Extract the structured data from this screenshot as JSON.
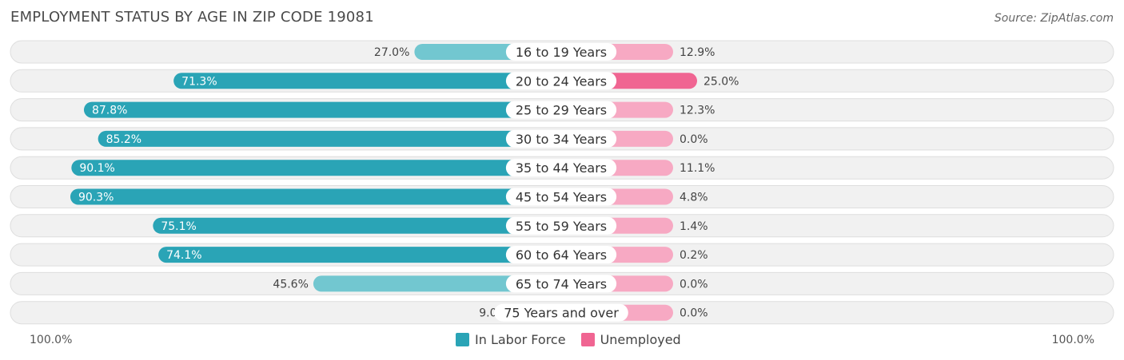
{
  "colors": {
    "labor_strong": "#2aa4b6",
    "labor_light": "#72c7d0",
    "unemployed_strong": "#f06592",
    "unemployed_light": "#f7a9c3",
    "row_background": "#f1f1f1",
    "row_border": "#dedede"
  },
  "chart_data": {
    "type": "bar",
    "orientation": "diverging-horizontal",
    "title": "EMPLOYMENT STATUS BY AGE IN ZIP CODE 19081",
    "source": "Source: ZipAtlas.com",
    "categories": [
      "16 to 19 Years",
      "20 to 24 Years",
      "25 to 29 Years",
      "30 to 34 Years",
      "35 to 44 Years",
      "45 to 54 Years",
      "55 to 59 Years",
      "60 to 64 Years",
      "65 to 74 Years",
      "75 Years and over"
    ],
    "series": [
      {
        "name": "In Labor Force",
        "side": "left",
        "values": [
          27.0,
          71.3,
          87.8,
          85.2,
          90.1,
          90.3,
          75.1,
          74.1,
          45.6,
          9.0
        ],
        "labels": [
          "27.0%",
          "71.3%",
          "87.8%",
          "85.2%",
          "90.1%",
          "90.3%",
          "75.1%",
          "74.1%",
          "45.6%",
          "9.0%"
        ]
      },
      {
        "name": "Unemployed",
        "side": "right",
        "values": [
          12.9,
          25.0,
          12.3,
          0.0,
          11.1,
          4.8,
          1.4,
          0.2,
          0.0,
          0.0
        ],
        "labels": [
          "12.9%",
          "25.0%",
          "12.3%",
          "0.0%",
          "11.1%",
          "4.8%",
          "1.4%",
          "0.2%",
          "0.0%",
          "0.0%"
        ]
      }
    ],
    "xlim": [
      -100,
      100
    ],
    "axis_labels": {
      "left": "100.0%",
      "right": "100.0%"
    },
    "legend": [
      "In Labor Force",
      "Unemployed"
    ],
    "legend_position": "bottom-center",
    "grid": false
  }
}
